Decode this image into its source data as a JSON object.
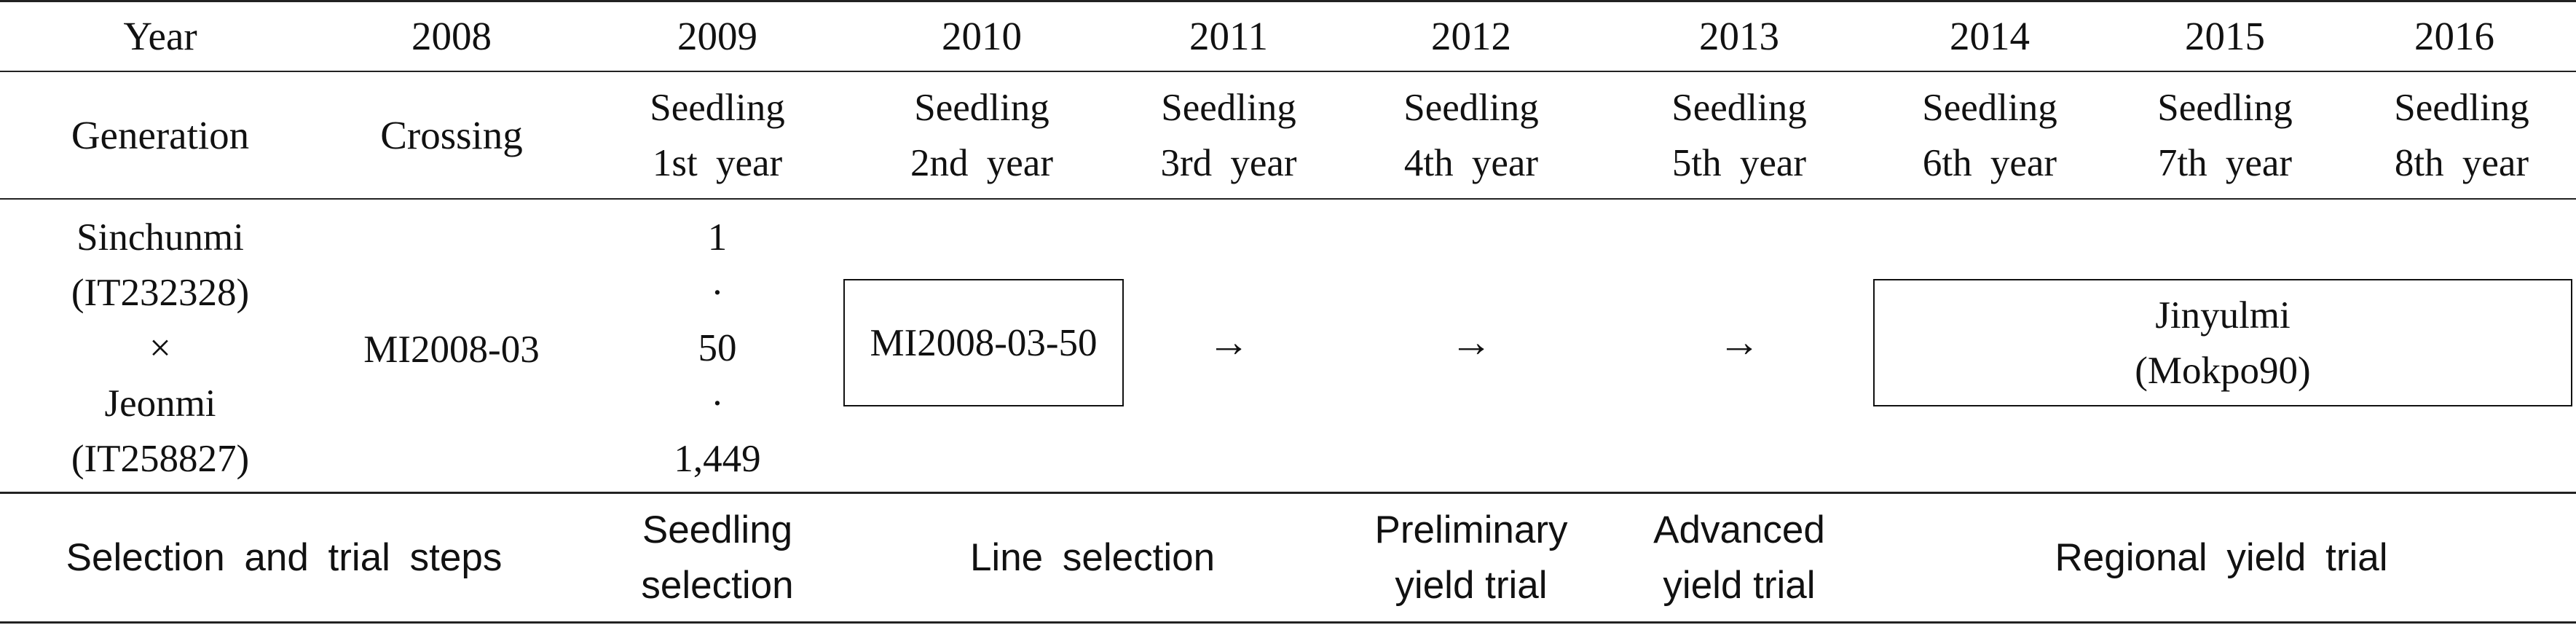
{
  "header": {
    "year_label": "Year",
    "years": [
      "2008",
      "2009",
      "2010",
      "2011",
      "2012",
      "2013",
      "2014",
      "2015",
      "2016"
    ]
  },
  "generation_row": {
    "label": "Generation",
    "crossing": "Crossing",
    "seedlings": [
      [
        "Seedling",
        "1st year"
      ],
      [
        "Seedling",
        "2nd year"
      ],
      [
        "Seedling",
        "3rd year"
      ],
      [
        "Seedling",
        "4th year"
      ],
      [
        "Seedling",
        "5th year"
      ],
      [
        "Seedling",
        "6th year"
      ],
      [
        "Seedling",
        "7th year"
      ],
      [
        "Seedling",
        "8th year"
      ]
    ]
  },
  "pedigree": {
    "parent1": "Sinchunmi",
    "parent1_id": "(IT232328)",
    "cross_symbol": "×",
    "parent2": "Jeonmi",
    "parent2_id": "(IT258827)",
    "cross_name": "MI2008-03",
    "seedling_range": [
      "1",
      "·",
      "50",
      "·",
      "1,449"
    ],
    "selected_line": "MI2008-03-50",
    "arrow": "→",
    "final_name": "Jinyulmi",
    "final_code": "(Mokpo90)"
  },
  "steps": {
    "label": "Selection and trial steps",
    "seedling_selection": [
      "Seedling",
      "selection"
    ],
    "line_selection": "Line selection",
    "preliminary": [
      "Preliminary",
      "yield trial"
    ],
    "advanced": [
      "Advanced",
      "yield trial"
    ],
    "regional": "Regional yield trial"
  }
}
